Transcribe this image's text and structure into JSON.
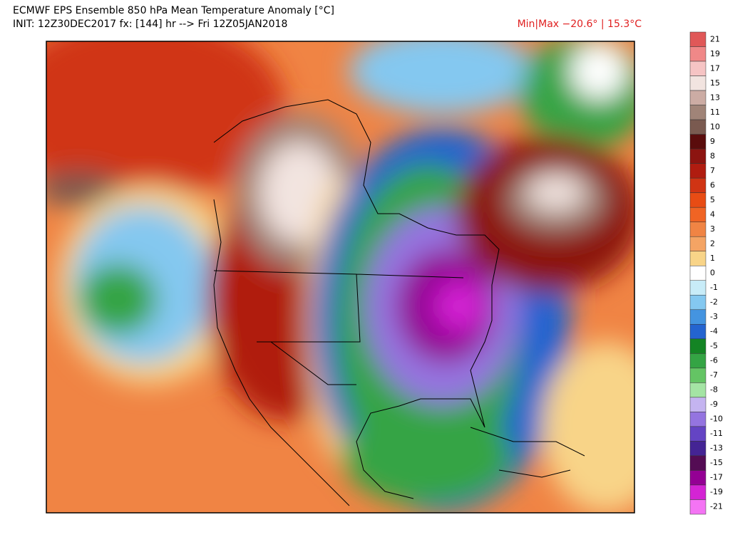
{
  "header": {
    "title": "ECMWF EPS Ensemble 850 hPa Mean Temperature Anomaly [°C]",
    "init": "INIT: 12Z30DEC2017 fx: [144] hr --> Fri 12Z05JAN2018",
    "minmax": "Min|Max −20.6° | 15.3°C"
  },
  "colorbar": {
    "values": [
      21,
      19,
      17,
      15,
      13,
      11,
      10,
      9,
      8,
      7,
      6,
      5,
      4,
      3,
      2,
      1,
      0,
      -1,
      -2,
      -3,
      -4,
      -5,
      -6,
      -7,
      -8,
      -9,
      -10,
      -11,
      -13,
      -15,
      -17,
      -19,
      -21
    ],
    "colors": [
      "#e05858",
      "#f08888",
      "#f6c4c4",
      "#f2e4e0",
      "#ccaca4",
      "#a08478",
      "#7a5a50",
      "#5a0c0c",
      "#8c1410",
      "#b01c10",
      "#d03414",
      "#e84c14",
      "#f06424",
      "#f08444",
      "#f4a464",
      "#f8d488",
      "#ffffff",
      "#c8ecf8",
      "#84c8f0",
      "#4494e0",
      "#2464d0",
      "#148424",
      "#34a444",
      "#64c464",
      "#a4e4a4",
      "#c4b4f0",
      "#9474e0",
      "#6444c4",
      "#442494",
      "#540c54",
      "#940094",
      "#d424d4",
      "#f474f4"
    ]
  }
}
